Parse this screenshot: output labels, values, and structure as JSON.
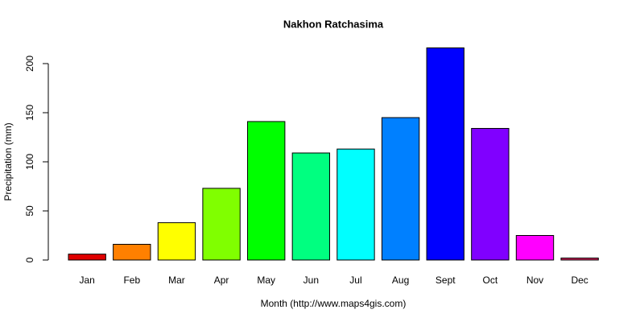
{
  "chart_data": {
    "type": "bar",
    "title": "Nakhon Ratchasima",
    "x_label": "Month (http://www.maps4gis.com)",
    "y_label": "Precipitation (mm)",
    "categories": [
      "Jan",
      "Feb",
      "Mar",
      "Apr",
      "May",
      "Jun",
      "Jul",
      "Aug",
      "Sept",
      "Oct",
      "Nov",
      "Dec"
    ],
    "values": [
      6,
      16,
      38,
      73,
      141,
      109,
      113,
      145,
      216,
      134,
      25,
      2
    ],
    "colors": [
      "#E00000",
      "#FF8000",
      "#FFFF00",
      "#80FF00",
      "#00FF00",
      "#00FF80",
      "#00FFFF",
      "#0080FF",
      "#0000FF",
      "#8000FF",
      "#FF00FF",
      "#D0205A"
    ],
    "ylim": [
      0,
      200
    ],
    "yticks": [
      0,
      50,
      100,
      150,
      200
    ],
    "grid": false
  }
}
